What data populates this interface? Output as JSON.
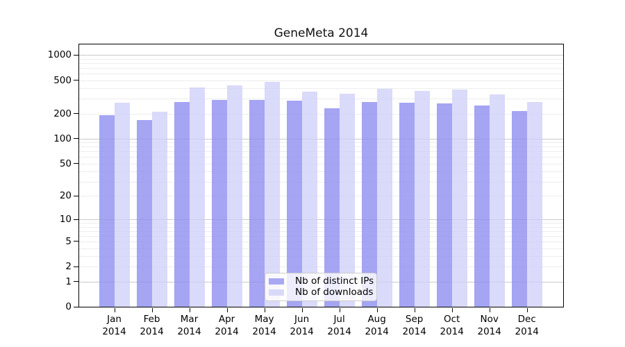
{
  "title": "GeneMeta 2014",
  "chart_data": {
    "type": "bar",
    "title": "GeneMeta 2014",
    "categories": [
      "Jan",
      "Feb",
      "Mar",
      "Apr",
      "May",
      "Jun",
      "Jul",
      "Aug",
      "Sep",
      "Oct",
      "Nov",
      "Dec"
    ],
    "category_year": "2014",
    "series": [
      {
        "name": "Nb of distinct IPs",
        "color": "#a9a9f3",
        "fill": "rgba(143,143,240,0.8)",
        "values": [
          190,
          167,
          277,
          291,
          290,
          288,
          231,
          274,
          270,
          264,
          249,
          215
        ]
      },
      {
        "name": "Nb of downloads",
        "color": "#d9d9f9",
        "fill": "rgba(206,206,248,0.75)",
        "values": [
          272,
          211,
          412,
          436,
          480,
          364,
          343,
          395,
          373,
          389,
          336,
          274
        ]
      }
    ],
    "yscale": "log1p",
    "ylim": [
      0,
      1365
    ],
    "yticks": [
      0,
      1,
      2,
      5,
      10,
      20,
      50,
      100,
      200,
      500,
      1000
    ],
    "gridlines": {
      "major": [
        1,
        10,
        100,
        1000
      ],
      "minor": [
        2,
        3,
        4,
        5,
        6,
        7,
        8,
        9,
        20,
        30,
        40,
        50,
        60,
        70,
        80,
        90,
        200,
        300,
        400,
        500,
        600,
        700,
        800,
        900
      ],
      "major_color": "#c9c9c9",
      "minor_color": "#ededed"
    },
    "legend": {
      "position": "bottom-center-inside",
      "entries": [
        "Nb of distinct IPs",
        "Nb of downloads"
      ]
    },
    "xlabel": "",
    "ylabel": ""
  }
}
